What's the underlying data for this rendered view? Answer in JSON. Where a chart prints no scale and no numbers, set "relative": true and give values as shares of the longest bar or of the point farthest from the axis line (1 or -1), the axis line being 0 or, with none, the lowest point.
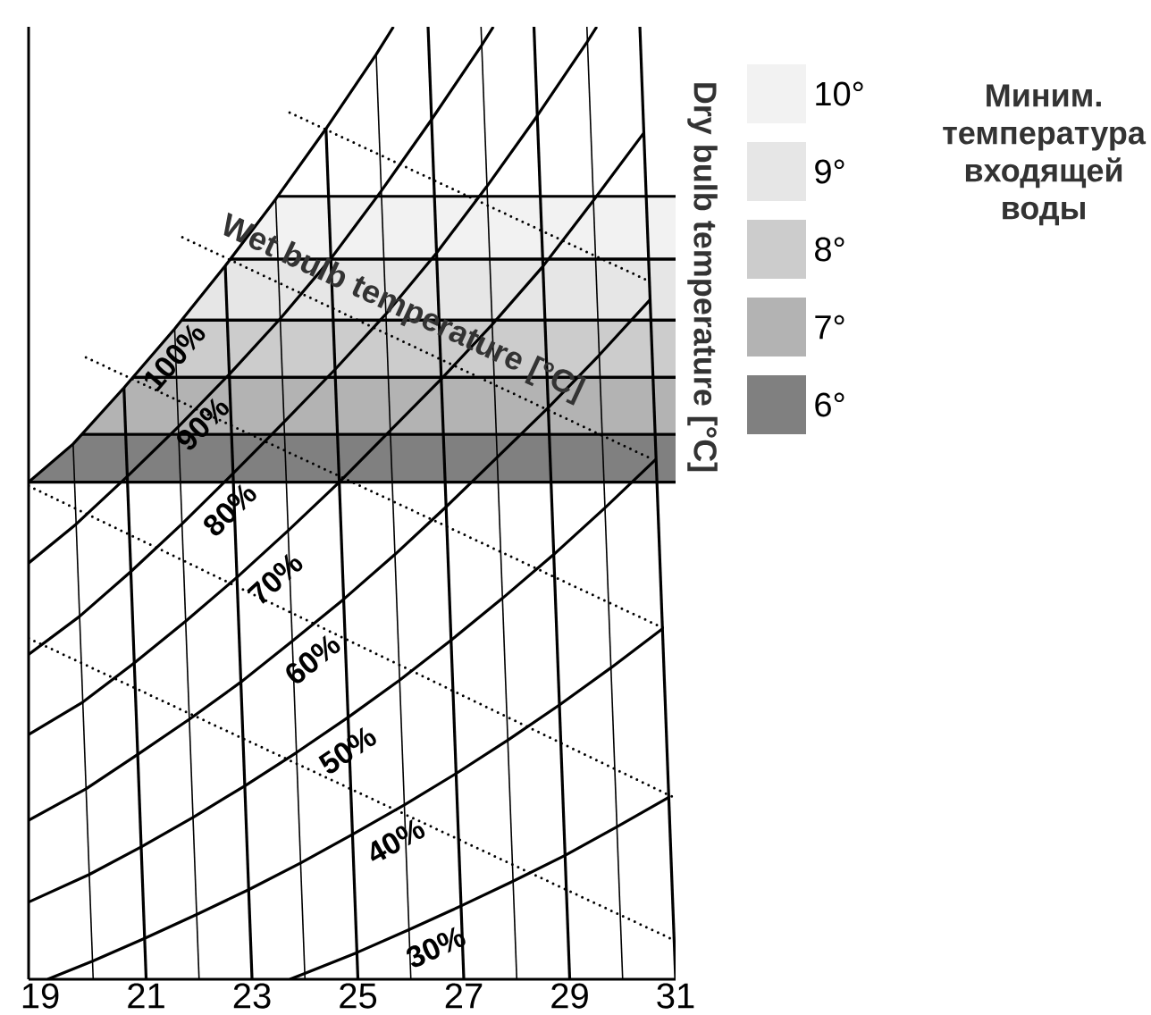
{
  "chart_data": {
    "type": "line",
    "relative": true,
    "xlim": [
      18.78,
      31
    ],
    "xticks": [
      19,
      21,
      23,
      25,
      27,
      29,
      31
    ],
    "tick_labels": "x",
    "ylabel": "Dry bulb temperature [°C]",
    "legend": "right",
    "legend_title": "Миним. температура входящей воды",
    "annotations": [
      "Wet bulb temperature [°C]"
    ],
    "bands": [
      {
        "axis": "y",
        "from": 0.756,
        "to": 0.822,
        "label": "10°",
        "color": "#f2f2f2"
      },
      {
        "axis": "y",
        "from": 0.692,
        "to": 0.756,
        "label": "9°",
        "color": "#e6e6e6"
      },
      {
        "axis": "y",
        "from": 0.632,
        "to": 0.692,
        "label": "8°",
        "color": "#cccccc"
      },
      {
        "axis": "y",
        "from": 0.572,
        "to": 0.632,
        "label": "7°",
        "color": "#b3b3b3"
      },
      {
        "axis": "y",
        "from": 0.522,
        "to": 0.572,
        "label": "6°",
        "color": "#808080"
      }
    ],
    "series": [
      {
        "name": "100%",
        "color": "#000000",
        "x": [
          18.78,
          19.621,
          20.581,
          21.539,
          22.494,
          23.447,
          24.397,
          25.345,
          25.671
        ],
        "values": [
          0.522,
          0.562,
          0.621,
          0.683,
          0.749,
          0.819,
          0.893,
          0.971,
          1
        ]
      },
      {
        "name": "90%",
        "color": "#000000",
        "x": [
          18.78,
          19.682,
          20.646,
          21.608,
          22.568,
          23.525,
          24.481,
          25.433,
          26.383,
          27.33,
          27.558
        ],
        "values": [
          0.437,
          0.478,
          0.528,
          0.58,
          0.635,
          0.693,
          0.756,
          0.827,
          0.902,
          0.98,
          1
        ]
      },
      {
        "name": "80%",
        "color": "#000000",
        "x": [
          18.78,
          19.743,
          20.711,
          21.677,
          22.642,
          23.604,
          24.564,
          25.522,
          26.477,
          27.43,
          28.38,
          29.327,
          29.511
        ],
        "values": [
          0.341,
          0.381,
          0.428,
          0.478,
          0.531,
          0.585,
          0.64,
          0.698,
          0.762,
          0.832,
          0.906,
          0.984,
          1
        ]
      },
      {
        "name": "70%",
        "color": "#000000",
        "x": [
          18.78,
          19.804,
          20.776,
          21.747,
          22.716,
          23.682,
          24.648,
          25.611,
          26.571,
          27.53,
          28.487,
          29.44,
          30.392
        ],
        "values": [
          0.257,
          0.291,
          0.332,
          0.376,
          0.422,
          0.471,
          0.522,
          0.576,
          0.63,
          0.687,
          0.748,
          0.817,
          0.888
        ]
      },
      {
        "name": "60%",
        "color": "#000000",
        "x": [
          18.78,
          19.865,
          20.841,
          21.816,
          22.789,
          23.761,
          24.731,
          25.699,
          26.666,
          27.63,
          28.593,
          29.553,
          30.512
        ],
        "values": [
          0.167,
          0.2,
          0.236,
          0.273,
          0.312,
          0.355,
          0.399,
          0.446,
          0.496,
          0.548,
          0.6,
          0.655,
          0.713
        ]
      },
      {
        "name": "50%",
        "color": "#000000",
        "x": [
          18.78,
          19.926,
          20.906,
          21.885,
          22.863,
          23.839,
          24.814,
          25.788,
          26.76,
          27.73,
          28.699,
          29.666,
          30.631
        ],
        "values": [
          0.081,
          0.11,
          0.139,
          0.17,
          0.203,
          0.238,
          0.275,
          0.314,
          0.356,
          0.4,
          0.446,
          0.495,
          0.546
        ]
      },
      {
        "name": "40%",
        "color": "#000000",
        "x": [
          19.14,
          19.987,
          20.971,
          21.954,
          22.936,
          23.918,
          24.898,
          25.877,
          26.854,
          27.831,
          28.806,
          29.779,
          30.751
        ],
        "values": [
          0,
          0.019,
          0.043,
          0.068,
          0.094,
          0.122,
          0.152,
          0.183,
          0.216,
          0.251,
          0.288,
          0.327,
          0.368
        ]
      },
      {
        "name": "30%",
        "color": "#000000",
        "x": [
          23.714,
          23.996,
          24.981,
          25.965,
          26.948,
          27.931,
          28.912,
          29.892,
          30.871
        ],
        "values": [
          0,
          0.006,
          0.028,
          0.052,
          0.077,
          0.103,
          0.13,
          0.16,
          0.191
        ]
      },
      {
        "color": "#000000",
        "x": [
          20,
          19.621
        ],
        "values": [
          0,
          0.562
        ]
      },
      {
        "color": "#000000",
        "x": [
          21,
          20.581
        ],
        "values": [
          0,
          0.621
        ]
      },
      {
        "color": "#000000",
        "x": [
          22,
          21.539
        ],
        "values": [
          0,
          0.683
        ]
      },
      {
        "color": "#000000",
        "x": [
          23,
          22.494
        ],
        "values": [
          0,
          0.749
        ]
      },
      {
        "color": "#000000",
        "x": [
          24,
          23.447
        ],
        "values": [
          0,
          0.819
        ]
      },
      {
        "color": "#000000",
        "x": [
          25,
          24.397
        ],
        "values": [
          0,
          0.893
        ]
      },
      {
        "color": "#000000",
        "x": [
          26,
          25.345
        ],
        "values": [
          0,
          0.971
        ]
      },
      {
        "color": "#000000",
        "x": [
          27,
          26.325
        ],
        "values": [
          0,
          1
        ]
      },
      {
        "color": "#000000",
        "x": [
          28,
          27.325
        ],
        "values": [
          0,
          1
        ]
      },
      {
        "color": "#000000",
        "x": [
          29,
          28.325
        ],
        "values": [
          0,
          1
        ]
      },
      {
        "color": "#000000",
        "x": [
          30,
          29.325
        ],
        "values": [
          0,
          1
        ]
      },
      {
        "color": "#000000",
        "x": [
          31,
          30.325
        ],
        "values": [
          0,
          1
        ]
      },
      {
        "color": "#000000",
        "line_style": "dotted",
        "x": [
          23.71,
          30.46
        ],
        "values": [
          0.91,
          0.734
        ]
      },
      {
        "color": "#000000",
        "line_style": "dotted",
        "x": [
          21.685,
          30.561
        ],
        "values": [
          0.779,
          0.546
        ]
      },
      {
        "color": "#000000",
        "line_style": "dotted",
        "x": [
          19.863,
          30.798
        ],
        "values": [
          0.653,
          0.368
        ]
      },
      {
        "color": "#000000",
        "line_style": "dotted",
        "x": [
          18.78,
          31
        ],
        "values": [
          0.518,
          0.19
        ]
      },
      {
        "color": "#000000",
        "line_style": "dotted",
        "x": [
          18.78,
          30.899
        ],
        "values": [
          0.358,
          0.043
        ]
      }
    ]
  }
}
